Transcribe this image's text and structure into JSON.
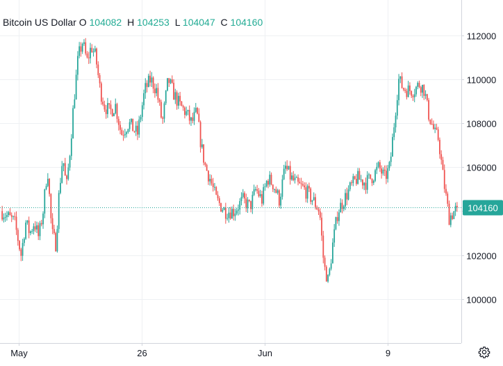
{
  "legend": {
    "symbol": "Bitcoin US Dollar",
    "o_label": "O",
    "o_value": "104082",
    "h_label": "H",
    "h_value": "104253",
    "l_label": "L",
    "l_value": "104047",
    "c_label": "C",
    "c_value": "104160"
  },
  "colors": {
    "up": "#26a69a",
    "down": "#ef5350",
    "price_line": "#26a69a",
    "grid": "#eef0f3",
    "axis_text": "#131722"
  },
  "settings_icon": "gear-icon",
  "chart_data": {
    "type": "candlestick",
    "title": "",
    "xlabel": "",
    "ylabel": "",
    "ylim": [
      98000,
      113600
    ],
    "y_ticks": [
      100000,
      102000,
      104000,
      106000,
      108000,
      110000,
      112000
    ],
    "x_ticks": [
      "May",
      "26",
      "Jun",
      "9"
    ],
    "x_range": [
      "2025-05-18",
      "2025-06-12"
    ],
    "x_tick_dates": [
      "2025-05-19",
      "2025-05-26",
      "2025-06-02",
      "2025-06-09"
    ],
    "last_price": 104160,
    "last_price_label": "104160",
    "grid": true,
    "path": [
      [
        "2025-05-18",
        104000
      ],
      [
        "2025-05-18",
        103500
      ],
      [
        "2025-05-19",
        102000
      ],
      [
        "2025-05-19",
        103500
      ],
      [
        "2025-05-19",
        103000
      ],
      [
        "2025-05-19",
        103500
      ],
      [
        "2025-05-20",
        102800
      ],
      [
        "2025-05-20",
        104000
      ],
      [
        "2025-05-20",
        106000
      ],
      [
        "2025-05-20",
        103000
      ],
      [
        "2025-05-21",
        102500
      ],
      [
        "2025-05-21",
        105000
      ],
      [
        "2025-05-21",
        106500
      ],
      [
        "2025-05-21",
        105000
      ],
      [
        "2025-05-21",
        106700
      ],
      [
        "2025-05-22",
        109000
      ],
      [
        "2025-05-22",
        111000
      ],
      [
        "2025-05-22",
        111700
      ],
      [
        "2025-05-22",
        110800
      ],
      [
        "2025-05-23",
        111500
      ],
      [
        "2025-05-23",
        111000
      ],
      [
        "2025-05-23",
        109500
      ],
      [
        "2025-05-23",
        108800
      ],
      [
        "2025-05-24",
        108500
      ],
      [
        "2025-05-24",
        108800
      ],
      [
        "2025-05-24",
        107500
      ],
      [
        "2025-05-25",
        108000
      ],
      [
        "2025-05-25",
        107500
      ],
      [
        "2025-05-26",
        109500
      ],
      [
        "2025-05-26",
        110000
      ],
      [
        "2025-05-26",
        109500
      ],
      [
        "2025-05-27",
        108000
      ],
      [
        "2025-05-27",
        110000
      ],
      [
        "2025-05-27",
        109300
      ],
      [
        "2025-05-28",
        108800
      ],
      [
        "2025-05-28",
        108500
      ],
      [
        "2025-05-28",
        108000
      ],
      [
        "2025-05-29",
        108500
      ],
      [
        "2025-05-29",
        107000
      ],
      [
        "2025-05-29",
        106000
      ],
      [
        "2025-05-29",
        105500
      ],
      [
        "2025-05-30",
        104500
      ],
      [
        "2025-05-30",
        104000
      ],
      [
        "2025-05-31",
        104000
      ],
      [
        "2025-05-31",
        104500
      ],
      [
        "2025-06-01",
        104200
      ],
      [
        "2025-06-01",
        105000
      ],
      [
        "2025-06-01",
        104500
      ],
      [
        "2025-06-02",
        105500
      ],
      [
        "2025-06-02",
        105200
      ],
      [
        "2025-06-02",
        104500
      ],
      [
        "2025-06-03",
        106000
      ],
      [
        "2025-06-03",
        105500
      ],
      [
        "2025-06-03",
        105200
      ],
      [
        "2025-06-04",
        105000
      ],
      [
        "2025-06-04",
        104500
      ],
      [
        "2025-06-05",
        104000
      ],
      [
        "2025-06-05",
        101500
      ],
      [
        "2025-06-05",
        100800
      ],
      [
        "2025-06-05",
        102500
      ],
      [
        "2025-06-06",
        104000
      ],
      [
        "2025-06-06",
        104500
      ],
      [
        "2025-06-06",
        105000
      ],
      [
        "2025-06-07",
        105500
      ],
      [
        "2025-06-07",
        105300
      ],
      [
        "2025-06-08",
        105600
      ],
      [
        "2025-06-08",
        106000
      ],
      [
        "2025-06-08",
        105500
      ],
      [
        "2025-06-09",
        106000
      ],
      [
        "2025-06-09",
        108000
      ],
      [
        "2025-06-09",
        110000
      ],
      [
        "2025-06-09",
        109600
      ],
      [
        "2025-06-10",
        109500
      ],
      [
        "2025-06-10",
        109500
      ],
      [
        "2025-06-10",
        109800
      ],
      [
        "2025-06-11",
        109500
      ],
      [
        "2025-06-11",
        108500
      ],
      [
        "2025-06-11",
        108000
      ],
      [
        "2025-06-11",
        107500
      ],
      [
        "2025-06-11",
        107300
      ],
      [
        "2025-06-12",
        105500
      ],
      [
        "2025-06-12",
        103700
      ],
      [
        "2025-06-12",
        104160
      ]
    ]
  }
}
